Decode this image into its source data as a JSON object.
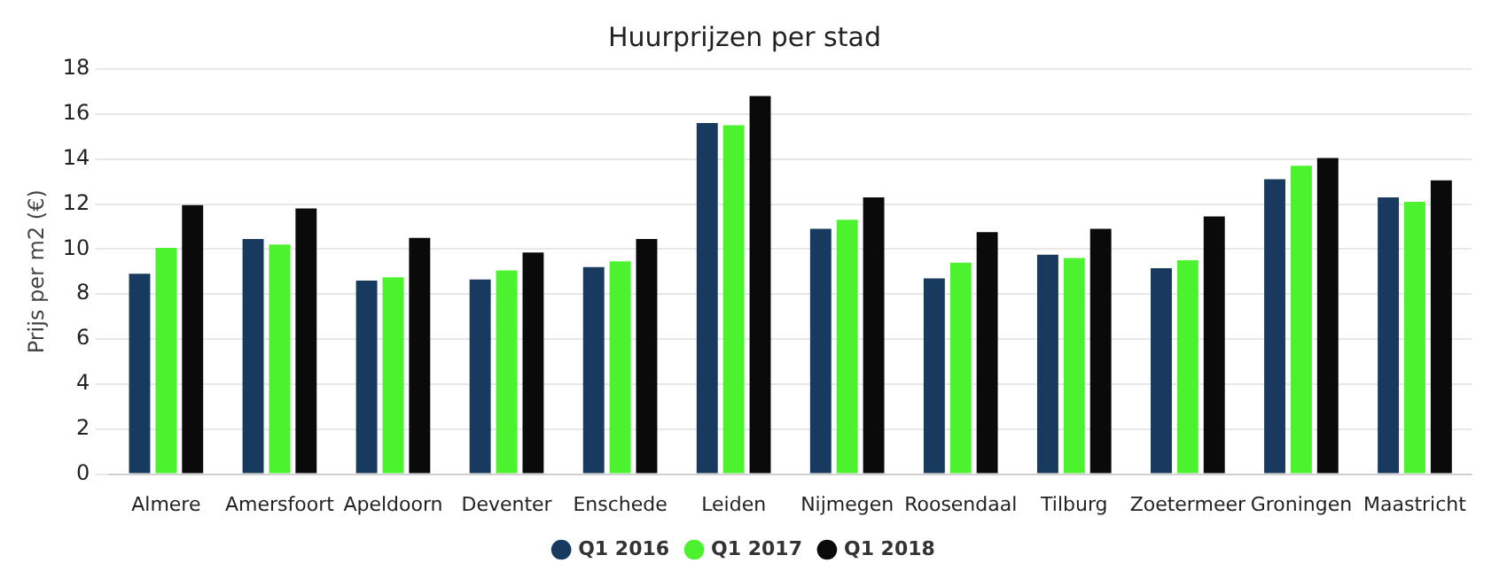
{
  "chart_data": {
    "type": "bar",
    "title": "Huurprijzen per stad",
    "ylabel": "Prijs per m2 (€)",
    "categories": [
      "Almere",
      "Amersfoort",
      "Apeldoorn",
      "Deventer",
      "Enschede",
      "Leiden",
      "Nijmegen",
      "Roosendaal",
      "Tilburg",
      "Zoetermeer",
      "Groningen",
      "Maastricht"
    ],
    "series": [
      {
        "name": "Q1 2016",
        "color": "#173a5e",
        "values": [
          8.9,
          10.45,
          8.6,
          8.65,
          9.2,
          15.6,
          10.9,
          8.7,
          9.75,
          9.15,
          13.1,
          12.3
        ]
      },
      {
        "name": "Q1 2017",
        "color": "#4cf22e",
        "values": [
          10.05,
          10.2,
          8.75,
          9.05,
          9.45,
          15.5,
          11.3,
          9.4,
          9.6,
          9.5,
          13.7,
          12.1
        ]
      },
      {
        "name": "Q1 2018",
        "color": "#0a0a0a",
        "values": [
          11.95,
          11.8,
          10.5,
          9.85,
          10.45,
          16.8,
          12.3,
          10.75,
          10.9,
          11.45,
          14.05,
          13.05
        ]
      }
    ],
    "ylim": [
      0,
      18
    ],
    "yticks": [
      0,
      2,
      4,
      6,
      8,
      10,
      12,
      14,
      16,
      18
    ],
    "grid": "y",
    "legend": "bottom"
  }
}
